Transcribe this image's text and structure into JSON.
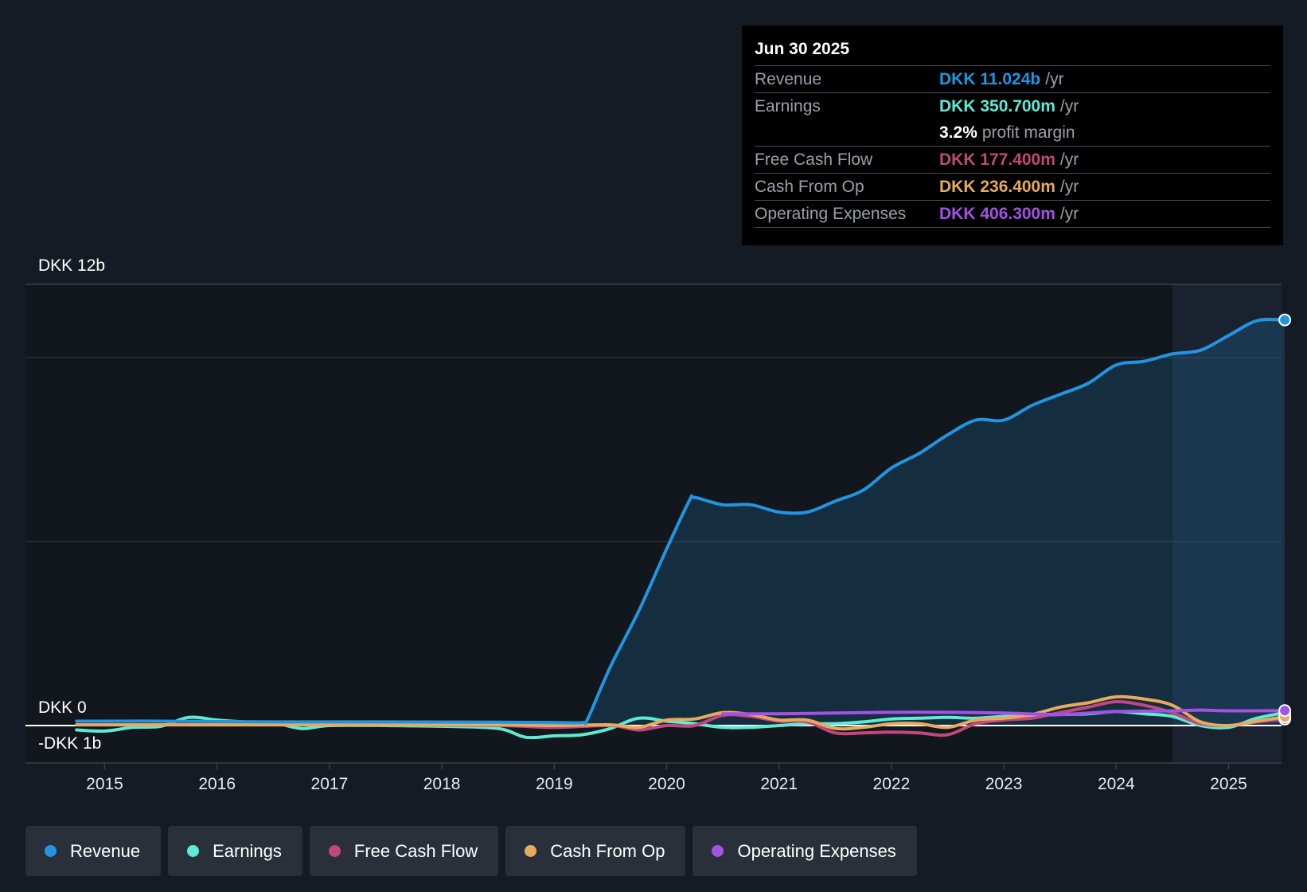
{
  "chart_data": {
    "type": "line",
    "currency": "DKK",
    "y_axis": {
      "top_label": "DKK 12b",
      "zero_label": "DKK 0",
      "bottom_label": "-DKK 1b",
      "ylim": [
        -1,
        12
      ]
    },
    "x_ticks": [
      "2015",
      "2016",
      "2017",
      "2018",
      "2019",
      "2020",
      "2021",
      "2022",
      "2023",
      "2024",
      "2025"
    ],
    "xlim": [
      2014.3,
      2025.5
    ],
    "shaded_forecast_start": 2024.5,
    "series": [
      {
        "name": "Revenue",
        "color": "#2394df",
        "fill": true,
        "points": [
          [
            2014.75,
            0.12
          ],
          [
            2015.5,
            0.12
          ],
          [
            2016.5,
            0.1
          ],
          [
            2017.5,
            0.1
          ],
          [
            2018.5,
            0.09
          ],
          [
            2019.0,
            0.08
          ],
          [
            2019.25,
            0.08
          ],
          [
            2019.3,
            0.2
          ],
          [
            2019.5,
            1.6
          ],
          [
            2019.75,
            3.1
          ],
          [
            2020.0,
            4.8
          ],
          [
            2020.2,
            6.1
          ],
          [
            2020.25,
            6.2
          ],
          [
            2020.5,
            6.0
          ],
          [
            2020.75,
            6.0
          ],
          [
            2021.0,
            5.8
          ],
          [
            2021.25,
            5.8
          ],
          [
            2021.5,
            6.1
          ],
          [
            2021.75,
            6.4
          ],
          [
            2022.0,
            7.0
          ],
          [
            2022.25,
            7.4
          ],
          [
            2022.5,
            7.9
          ],
          [
            2022.75,
            8.3
          ],
          [
            2023.0,
            8.3
          ],
          [
            2023.25,
            8.7
          ],
          [
            2023.5,
            9.0
          ],
          [
            2023.75,
            9.3
          ],
          [
            2024.0,
            9.8
          ],
          [
            2024.25,
            9.9
          ],
          [
            2024.5,
            10.1
          ],
          [
            2024.75,
            10.2
          ],
          [
            2025.0,
            10.6
          ],
          [
            2025.25,
            11.0
          ],
          [
            2025.5,
            11.024
          ]
        ]
      },
      {
        "name": "Earnings",
        "color": "#5eead4",
        "points": [
          [
            2014.75,
            -0.12
          ],
          [
            2015.0,
            -0.15
          ],
          [
            2015.25,
            -0.05
          ],
          [
            2015.5,
            -0.02
          ],
          [
            2015.75,
            0.22
          ],
          [
            2016.0,
            0.15
          ],
          [
            2016.25,
            0.1
          ],
          [
            2016.5,
            0.08
          ],
          [
            2016.75,
            -0.08
          ],
          [
            2017.0,
            0.0
          ],
          [
            2017.5,
            0.0
          ],
          [
            2018.0,
            -0.02
          ],
          [
            2018.5,
            -0.08
          ],
          [
            2018.75,
            -0.32
          ],
          [
            2019.0,
            -0.28
          ],
          [
            2019.25,
            -0.25
          ],
          [
            2019.5,
            -0.08
          ],
          [
            2019.75,
            0.2
          ],
          [
            2020.0,
            0.12
          ],
          [
            2020.25,
            0.05
          ],
          [
            2020.5,
            -0.05
          ],
          [
            2020.75,
            -0.05
          ],
          [
            2021.0,
            0.0
          ],
          [
            2021.25,
            0.05
          ],
          [
            2021.5,
            0.05
          ],
          [
            2021.75,
            0.1
          ],
          [
            2022.0,
            0.18
          ],
          [
            2022.25,
            0.2
          ],
          [
            2022.5,
            0.22
          ],
          [
            2022.75,
            0.2
          ],
          [
            2023.0,
            0.25
          ],
          [
            2023.25,
            0.28
          ],
          [
            2023.5,
            0.3
          ],
          [
            2023.75,
            0.32
          ],
          [
            2024.0,
            0.38
          ],
          [
            2024.25,
            0.32
          ],
          [
            2024.5,
            0.25
          ],
          [
            2024.75,
            0.0
          ],
          [
            2025.0,
            -0.05
          ],
          [
            2025.25,
            0.2
          ],
          [
            2025.5,
            0.3507
          ]
        ]
      },
      {
        "name": "Free Cash Flow",
        "color": "#c2477e",
        "points": [
          [
            2014.75,
            0.02
          ],
          [
            2015.5,
            0.02
          ],
          [
            2016.5,
            0.02
          ],
          [
            2017.5,
            0.02
          ],
          [
            2018.5,
            0.0
          ],
          [
            2019.0,
            -0.05
          ],
          [
            2019.5,
            0.0
          ],
          [
            2019.75,
            -0.12
          ],
          [
            2020.0,
            0.0
          ],
          [
            2020.25,
            0.0
          ],
          [
            2020.5,
            0.28
          ],
          [
            2020.75,
            0.25
          ],
          [
            2021.0,
            0.12
          ],
          [
            2021.25,
            0.1
          ],
          [
            2021.5,
            -0.2
          ],
          [
            2021.75,
            -0.2
          ],
          [
            2022.0,
            -0.18
          ],
          [
            2022.25,
            -0.2
          ],
          [
            2022.5,
            -0.25
          ],
          [
            2022.75,
            0.05
          ],
          [
            2023.0,
            0.15
          ],
          [
            2023.25,
            0.2
          ],
          [
            2023.5,
            0.35
          ],
          [
            2023.75,
            0.5
          ],
          [
            2024.0,
            0.65
          ],
          [
            2024.25,
            0.55
          ],
          [
            2024.5,
            0.35
          ],
          [
            2024.75,
            0.05
          ],
          [
            2025.0,
            0.0
          ],
          [
            2025.25,
            0.1
          ],
          [
            2025.5,
            0.1774
          ]
        ]
      },
      {
        "name": "Cash From Op",
        "color": "#e8aa5b",
        "points": [
          [
            2014.75,
            0.02
          ],
          [
            2015.5,
            0.02
          ],
          [
            2016.5,
            0.02
          ],
          [
            2017.5,
            0.02
          ],
          [
            2018.5,
            0.02
          ],
          [
            2019.0,
            0.0
          ],
          [
            2019.5,
            0.02
          ],
          [
            2019.75,
            -0.05
          ],
          [
            2020.0,
            0.15
          ],
          [
            2020.25,
            0.18
          ],
          [
            2020.5,
            0.35
          ],
          [
            2020.75,
            0.3
          ],
          [
            2021.0,
            0.15
          ],
          [
            2021.25,
            0.15
          ],
          [
            2021.5,
            -0.08
          ],
          [
            2021.75,
            -0.05
          ],
          [
            2022.0,
            0.05
          ],
          [
            2022.25,
            0.05
          ],
          [
            2022.5,
            -0.05
          ],
          [
            2022.75,
            0.15
          ],
          [
            2023.0,
            0.2
          ],
          [
            2023.25,
            0.3
          ],
          [
            2023.5,
            0.5
          ],
          [
            2023.75,
            0.62
          ],
          [
            2024.0,
            0.78
          ],
          [
            2024.25,
            0.72
          ],
          [
            2024.5,
            0.55
          ],
          [
            2024.75,
            0.1
          ],
          [
            2025.0,
            0.0
          ],
          [
            2025.25,
            0.12
          ],
          [
            2025.5,
            0.2364
          ]
        ]
      },
      {
        "name": "Operating Expenses",
        "color": "#a451e5",
        "points": [
          [
            2020.5,
            0.32
          ],
          [
            2020.75,
            0.32
          ],
          [
            2021.0,
            0.32
          ],
          [
            2021.5,
            0.34
          ],
          [
            2022.0,
            0.36
          ],
          [
            2022.5,
            0.36
          ],
          [
            2023.0,
            0.34
          ],
          [
            2023.5,
            0.3
          ],
          [
            2024.0,
            0.38
          ],
          [
            2024.5,
            0.4
          ],
          [
            2024.75,
            0.42
          ],
          [
            2025.0,
            0.4
          ],
          [
            2025.5,
            0.4063
          ]
        ]
      }
    ]
  },
  "tooltip": {
    "date": "Jun 30 2025",
    "unit": "/yr",
    "revenue": {
      "label": "Revenue",
      "value": "DKK 11.024b",
      "color": "#2394df"
    },
    "earnings": {
      "label": "Earnings",
      "value": "DKK 350.700m",
      "color": "#5eead4"
    },
    "profit_margin": {
      "value": "3.2%",
      "label": "profit margin"
    },
    "fcf": {
      "label": "Free Cash Flow",
      "value": "DKK 177.400m",
      "color": "#c2477e"
    },
    "cfo": {
      "label": "Cash From Op",
      "value": "DKK 236.400m",
      "color": "#e8aa5b"
    },
    "opex": {
      "label": "Operating Expenses",
      "value": "DKK 406.300m",
      "color": "#a451e5"
    }
  },
  "legend": [
    {
      "label": "Revenue",
      "color": "#2394df"
    },
    {
      "label": "Earnings",
      "color": "#5eead4"
    },
    {
      "label": "Free Cash Flow",
      "color": "#c2477e"
    },
    {
      "label": "Cash From Op",
      "color": "#e8aa5b"
    },
    {
      "label": "Operating Expenses",
      "color": "#a451e5"
    }
  ]
}
